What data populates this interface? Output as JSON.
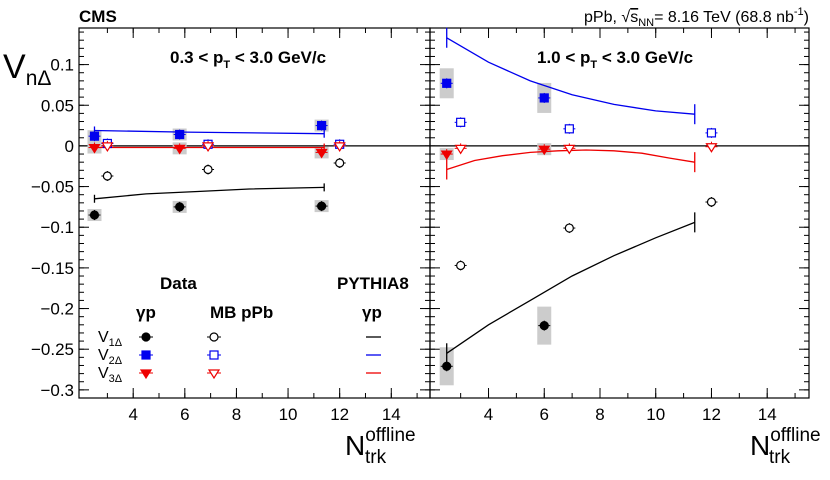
{
  "header": {
    "experiment": "CMS",
    "collision_prefix": "pPb,",
    "sqrt_symbol": "√",
    "sqrt_arg": "s",
    "sqrt_sub": "NN",
    "energy_text": "= 8.16 TeV (68.8 nb",
    "lumi_sup": "-1",
    "lumi_close": ")"
  },
  "chart_data": {
    "type": "scatter",
    "ylabel": {
      "main": "V",
      "sub": "nΔ"
    },
    "xlabel": {
      "main": "N",
      "sub": "trk",
      "sup": "offline"
    },
    "ylim": [
      -0.31,
      0.145
    ],
    "yticks": [
      0.1,
      0.05,
      0,
      -0.05,
      -0.1,
      -0.15,
      -0.2,
      -0.25,
      -0.3
    ],
    "ytick_labels": [
      "0.1",
      "0.05",
      "0",
      "−0.05",
      "−0.1",
      "−0.15",
      "−0.2",
      "−0.25",
      "−0.3"
    ],
    "xticks": [
      4,
      6,
      8,
      10,
      12,
      14
    ],
    "xtick_labels": [
      "4",
      "6",
      "8",
      "10",
      "12",
      "14"
    ],
    "panels": [
      {
        "label_prefix": "0.3 < p",
        "label_sub": "T",
        "label_suffix": " < 3.0 GeV/c",
        "xlim": [
          1.9,
          15.5
        ],
        "data_V1": [
          [
            2.5,
            -0.085
          ],
          [
            5.8,
            -0.075
          ],
          [
            11.3,
            -0.074
          ]
        ],
        "mb_V1": [
          [
            3.0,
            -0.037
          ],
          [
            6.9,
            -0.029
          ],
          [
            12.0,
            -0.021
          ]
        ],
        "data_V2": [
          [
            2.5,
            0.012
          ],
          [
            5.8,
            0.014
          ],
          [
            11.3,
            0.025
          ]
        ],
        "mb_V2": [
          [
            3.0,
            0.003
          ],
          [
            6.9,
            0.002
          ],
          [
            12.0,
            0.002
          ]
        ],
        "data_V3": [
          [
            2.5,
            -0.002
          ],
          [
            5.8,
            -0.003
          ],
          [
            11.3,
            -0.008
          ]
        ],
        "mb_V3": [
          [
            3.0,
            0.0
          ],
          [
            6.9,
            0.0
          ],
          [
            12.0,
            0.0
          ]
        ],
        "pythia_V1": [
          [
            2.5,
            -0.065
          ],
          [
            4.5,
            -0.059
          ],
          [
            6.5,
            -0.056
          ],
          [
            8.5,
            -0.053
          ],
          [
            11.4,
            -0.051
          ]
        ],
        "pythia_V2": [
          [
            2.5,
            0.019
          ],
          [
            6.0,
            0.017
          ],
          [
            11.4,
            0.015
          ]
        ],
        "pythia_V3": [
          [
            2.5,
            -0.002
          ],
          [
            6.0,
            -0.002
          ],
          [
            11.4,
            -0.002
          ]
        ]
      },
      {
        "label_prefix": "1.0 < p",
        "label_sub": "T",
        "label_suffix": " < 3.0 GeV/c",
        "xlim": [
          1.9,
          15.5
        ],
        "data_V1": [
          [
            2.5,
            -0.271
          ],
          [
            6.0,
            -0.221
          ]
        ],
        "mb_V1": [
          [
            3.0,
            -0.147
          ],
          [
            6.9,
            -0.101
          ],
          [
            12.0,
            -0.069
          ]
        ],
        "data_V2": [
          [
            2.5,
            0.077
          ],
          [
            6.0,
            0.059
          ]
        ],
        "mb_V2": [
          [
            3.0,
            0.029
          ],
          [
            6.9,
            0.021
          ],
          [
            12.0,
            0.016
          ]
        ],
        "data_V3": [
          [
            2.5,
            -0.01
          ],
          [
            6.0,
            -0.004
          ]
        ],
        "mb_V3": [
          [
            3.0,
            -0.003
          ],
          [
            6.9,
            -0.003
          ],
          [
            12.0,
            -0.001
          ]
        ],
        "pythia_V1": [
          [
            2.5,
            -0.255
          ],
          [
            4.0,
            -0.22
          ],
          [
            5.5,
            -0.19
          ],
          [
            7.0,
            -0.16
          ],
          [
            8.5,
            -0.135
          ],
          [
            10.0,
            -0.113
          ],
          [
            11.4,
            -0.094
          ]
        ],
        "pythia_V2": [
          [
            2.5,
            0.133
          ],
          [
            4.0,
            0.103
          ],
          [
            5.5,
            0.08
          ],
          [
            7.0,
            0.063
          ],
          [
            8.5,
            0.051
          ],
          [
            10.0,
            0.043
          ],
          [
            11.4,
            0.039
          ]
        ],
        "pythia_V3": [
          [
            2.5,
            -0.029
          ],
          [
            3.5,
            -0.018
          ],
          [
            4.5,
            -0.012
          ],
          [
            5.5,
            -0.008
          ],
          [
            6.5,
            -0.006
          ],
          [
            7.5,
            -0.005
          ],
          [
            8.5,
            -0.006
          ],
          [
            9.5,
            -0.009
          ],
          [
            10.5,
            -0.015
          ],
          [
            11.4,
            -0.02
          ]
        ]
      }
    ],
    "legend": {
      "col_data": "Data",
      "col_pythia": "PYTHIA8",
      "col_mb": "MB pPb",
      "gamma_p": "γp",
      "rows": [
        {
          "main": "V",
          "sub": "1Δ",
          "color": "#000000",
          "key": "V1"
        },
        {
          "main": "V",
          "sub": "2Δ",
          "color": "#0000ee",
          "key": "V2"
        },
        {
          "main": "V",
          "sub": "3Δ",
          "color": "#ee0000",
          "key": "V3"
        }
      ]
    },
    "colors": {
      "V1": "#000000",
      "V2": "#0000ee",
      "V3": "#ee0000",
      "syst": "#cccccc"
    }
  }
}
